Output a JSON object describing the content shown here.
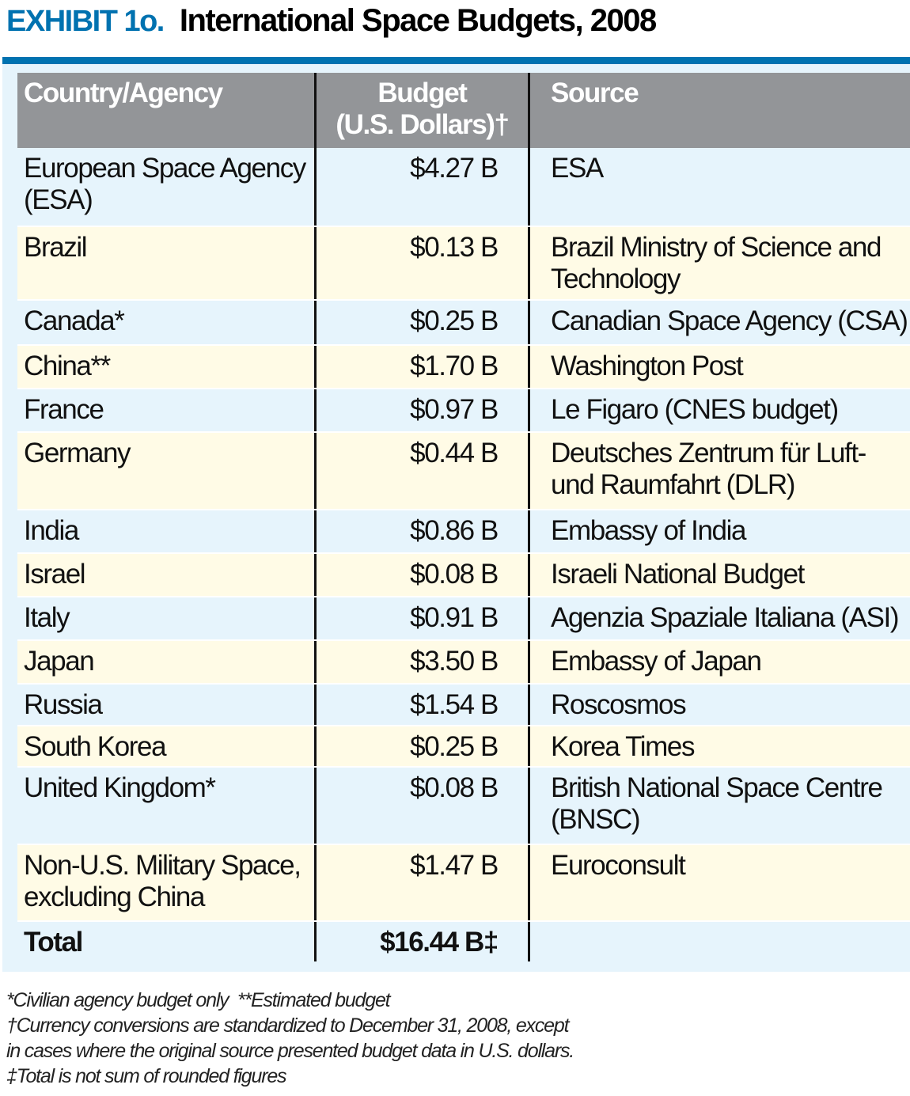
{
  "header": {
    "exhibit": "EXHIBIT 1o.",
    "title": "International Space Budgets, 2008"
  },
  "colors": {
    "accent": "#0072b0",
    "header_bg": "#939598",
    "row_blue": "#e6f4fc",
    "row_cream": "#fffbe6"
  },
  "table": {
    "columns": [
      "Country/Agency",
      "Budget",
      "(U.S. Dollars)†",
      "Source"
    ],
    "rows": [
      {
        "country": "European Space Agency (ESA)",
        "budget": "$4.27 B",
        "source": "ESA"
      },
      {
        "country": "Brazil",
        "budget": "$0.13 B",
        "source": "Brazil Ministry of Science and Technology"
      },
      {
        "country": "Canada*",
        "budget": "$0.25 B",
        "source": "Canadian Space Agency (CSA)"
      },
      {
        "country": "China**",
        "budget": "$1.70 B",
        "source": "Washington Post"
      },
      {
        "country": "France",
        "budget": "$0.97 B",
        "source": "Le Figaro (CNES budget)"
      },
      {
        "country": "Germany",
        "budget": "$0.44 B",
        "source": "Deutsches Zentrum für Luft- und Raumfahrt (DLR)"
      },
      {
        "country": "India",
        "budget": "$0.86 B",
        "source": "Embassy of India"
      },
      {
        "country": "Israel",
        "budget": "$0.08 B",
        "source": "Israeli National Budget"
      },
      {
        "country": "Italy",
        "budget": "$0.91 B",
        "source": "Agenzia Spaziale Italiana (ASI)"
      },
      {
        "country": "Japan",
        "budget": "$3.50 B",
        "source": "Embassy of Japan"
      },
      {
        "country": "Russia",
        "budget": "$1.54 B",
        "source": "Roscosmos"
      },
      {
        "country": "South Korea",
        "budget": "$0.25 B",
        "source": "Korea Times"
      },
      {
        "country": "United Kingdom*",
        "budget": "$0.08 B",
        "source": "British National Space Centre (BNSC)"
      },
      {
        "country": "Non-U.S. Military Space, excluding China",
        "budget": "$1.47 B",
        "source": "Euroconsult"
      }
    ],
    "total": {
      "label": "Total",
      "budget": "$16.44 B‡"
    }
  },
  "notes": [
    "*Civilian agency budget only  **Estimated budget",
    "†Currency conversions are standardized to December 31, 2008, except",
    "in cases where the original source presented budget data in U.S. dollars.",
    "‡Total is not sum of rounded figures"
  ]
}
